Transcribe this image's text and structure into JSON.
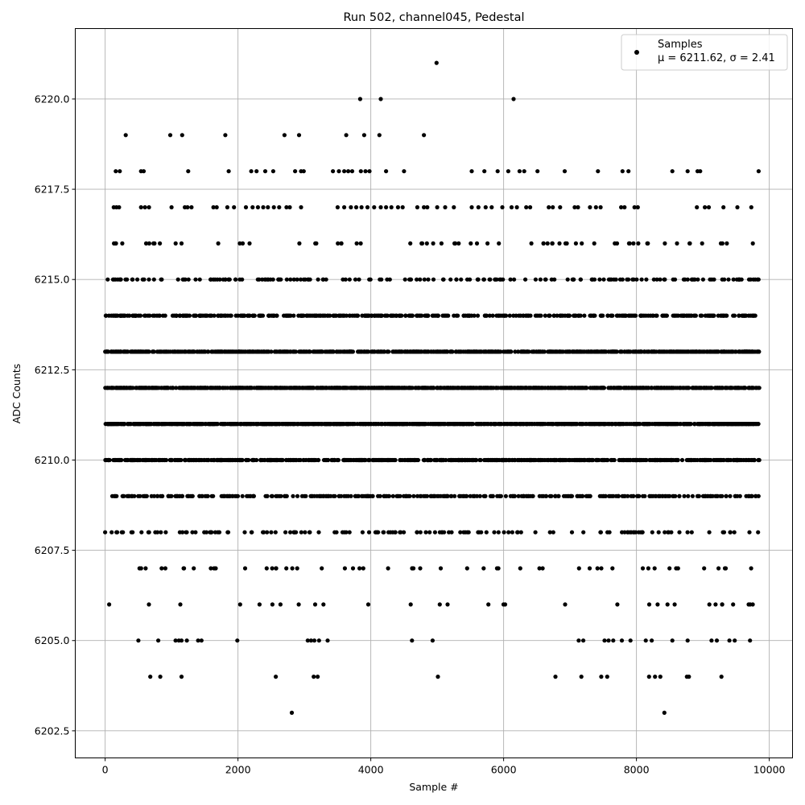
{
  "chart_data": {
    "type": "scatter",
    "title": "Run 502, channel045, Pedestal",
    "xlabel": "Sample #",
    "ylabel": "ADC Counts",
    "xlim": [
      -450,
      10350
    ],
    "ylim": [
      6201.75,
      6221.95
    ],
    "xticks": [
      0,
      2000,
      4000,
      6000,
      8000,
      10000
    ],
    "yticks": [
      6202.5,
      6205.0,
      6207.5,
      6210.0,
      6212.5,
      6215.0,
      6217.5,
      6220.0
    ],
    "xtick_labels": [
      "0",
      "2000",
      "4000",
      "6000",
      "8000",
      "10000"
    ],
    "ytick_labels": [
      "6202.5",
      "6205.0",
      "6207.5",
      "6210.0",
      "6212.5",
      "6215.0",
      "6217.5",
      "6220.0"
    ],
    "grid": true,
    "legend_position": "top-right",
    "marker_color": "#000000",
    "series": [
      {
        "name": "Samples",
        "stats_label": "μ = 6211.62, σ = 2.41",
        "band_levels": [
          6204,
          6205,
          6206,
          6207,
          6208,
          6209,
          6210,
          6211,
          6212,
          6213,
          6214,
          6215,
          6216,
          6217,
          6218
        ],
        "points": [
          [
            0,
            6208
          ],
          [
            60,
            6206
          ],
          [
            2810,
            6203
          ],
          [
            8420,
            6203
          ],
          [
            4990,
            6221
          ],
          [
            3840,
            6220
          ],
          [
            4150,
            6220
          ],
          [
            6150,
            6220
          ],
          [
            310,
            6219
          ],
          [
            980,
            6219
          ],
          [
            1160,
            6219
          ],
          [
            1810,
            6219
          ],
          [
            2700,
            6219
          ],
          [
            2920,
            6219
          ],
          [
            3630,
            6219
          ],
          [
            3900,
            6219
          ],
          [
            4130,
            6219
          ],
          [
            4800,
            6219
          ],
          [
            680,
            6204
          ],
          [
            830,
            6204
          ],
          [
            1150,
            6204
          ],
          [
            2570,
            6204
          ],
          [
            3140,
            6204
          ],
          [
            3200,
            6204
          ],
          [
            5010,
            6204
          ],
          [
            6780,
            6204
          ],
          [
            7170,
            6204
          ],
          [
            7470,
            6204
          ],
          [
            7560,
            6204
          ],
          [
            8190,
            6204
          ],
          [
            8280,
            6204
          ],
          [
            8360,
            6204
          ],
          [
            8760,
            6204
          ],
          [
            8790,
            6204
          ],
          [
            9280,
            6204
          ],
          [
            500,
            6205
          ],
          [
            800,
            6205
          ],
          [
            1060,
            6205
          ],
          [
            1110,
            6205
          ],
          [
            1150,
            6205
          ],
          [
            1230,
            6205
          ],
          [
            1400,
            6205
          ],
          [
            1450,
            6205
          ],
          [
            1990,
            6205
          ],
          [
            3050,
            6205
          ],
          [
            3100,
            6205
          ],
          [
            3150,
            6205
          ],
          [
            3220,
            6205
          ],
          [
            3350,
            6205
          ],
          [
            4620,
            6205
          ],
          [
            4930,
            6205
          ],
          [
            7130,
            6205
          ],
          [
            7200,
            6205
          ],
          [
            7520,
            6205
          ],
          [
            7580,
            6205
          ],
          [
            7650,
            6205
          ],
          [
            7780,
            6205
          ],
          [
            7910,
            6205
          ],
          [
            8140,
            6205
          ],
          [
            8230,
            6205
          ],
          [
            8540,
            6205
          ],
          [
            8770,
            6205
          ],
          [
            9130,
            6205
          ],
          [
            9210,
            6205
          ],
          [
            9400,
            6205
          ],
          [
            9480,
            6205
          ],
          [
            9710,
            6205
          ],
          [
            130,
            6217
          ],
          [
            170,
            6217
          ],
          [
            210,
            6217
          ],
          [
            540,
            6217
          ],
          [
            600,
            6217
          ],
          [
            660,
            6217
          ],
          [
            1000,
            6217
          ],
          [
            1200,
            6217
          ],
          [
            1240,
            6217
          ],
          [
            1300,
            6217
          ],
          [
            1630,
            6217
          ],
          [
            1680,
            6217
          ],
          [
            1840,
            6217
          ],
          [
            1940,
            6217
          ],
          [
            2120,
            6217
          ],
          [
            2220,
            6217
          ],
          [
            2300,
            6217
          ],
          [
            2380,
            6217
          ],
          [
            2450,
            6217
          ],
          [
            2540,
            6217
          ],
          [
            2620,
            6217
          ],
          [
            2730,
            6217
          ],
          [
            2780,
            6217
          ],
          [
            2950,
            6217
          ],
          [
            3500,
            6217
          ],
          [
            3600,
            6217
          ],
          [
            3700,
            6217
          ],
          [
            3780,
            6217
          ],
          [
            3860,
            6217
          ],
          [
            3950,
            6217
          ],
          [
            4050,
            6217
          ],
          [
            4150,
            6217
          ],
          [
            4230,
            6217
          ],
          [
            4310,
            6217
          ],
          [
            4410,
            6217
          ],
          [
            4480,
            6217
          ],
          [
            4700,
            6217
          ],
          [
            4800,
            6217
          ],
          [
            4850,
            6217
          ],
          [
            5000,
            6217
          ],
          [
            5120,
            6217
          ],
          [
            5250,
            6217
          ],
          [
            5520,
            6217
          ],
          [
            5620,
            6217
          ],
          [
            5730,
            6217
          ],
          [
            5820,
            6217
          ],
          [
            5980,
            6217
          ],
          [
            6120,
            6217
          ],
          [
            6200,
            6217
          ],
          [
            6340,
            6217
          ],
          [
            6400,
            6217
          ],
          [
            6680,
            6217
          ],
          [
            6740,
            6217
          ],
          [
            6850,
            6217
          ],
          [
            7070,
            6217
          ],
          [
            7120,
            6217
          ],
          [
            7300,
            6217
          ],
          [
            7390,
            6217
          ],
          [
            7460,
            6217
          ],
          [
            7770,
            6217
          ],
          [
            7820,
            6217
          ],
          [
            7970,
            6217
          ],
          [
            8020,
            6217
          ],
          [
            8910,
            6217
          ],
          [
            9030,
            6217
          ],
          [
            9090,
            6217
          ],
          [
            9310,
            6217
          ],
          [
            9520,
            6217
          ],
          [
            9730,
            6217
          ],
          [
            160,
            6218
          ],
          [
            220,
            6218
          ],
          [
            540,
            6218
          ],
          [
            580,
            6218
          ],
          [
            1250,
            6218
          ],
          [
            1860,
            6218
          ],
          [
            2200,
            6218
          ],
          [
            2280,
            6218
          ],
          [
            2410,
            6218
          ],
          [
            2530,
            6218
          ],
          [
            2860,
            6218
          ],
          [
            2950,
            6218
          ],
          [
            2990,
            6218
          ],
          [
            3430,
            6218
          ],
          [
            3520,
            6218
          ],
          [
            3600,
            6218
          ],
          [
            3660,
            6218
          ],
          [
            3720,
            6218
          ],
          [
            3850,
            6218
          ],
          [
            3920,
            6218
          ],
          [
            3980,
            6218
          ],
          [
            4230,
            6218
          ],
          [
            4500,
            6218
          ],
          [
            5520,
            6218
          ],
          [
            5710,
            6218
          ],
          [
            5910,
            6218
          ],
          [
            6070,
            6218
          ],
          [
            6240,
            6218
          ],
          [
            6310,
            6218
          ],
          [
            6510,
            6218
          ],
          [
            6920,
            6218
          ],
          [
            7420,
            6218
          ],
          [
            7790,
            6218
          ],
          [
            7880,
            6218
          ],
          [
            8540,
            6218
          ],
          [
            8770,
            6218
          ],
          [
            8920,
            6218
          ],
          [
            8960,
            6218
          ],
          [
            9840,
            6218
          ]
        ]
      }
    ]
  }
}
